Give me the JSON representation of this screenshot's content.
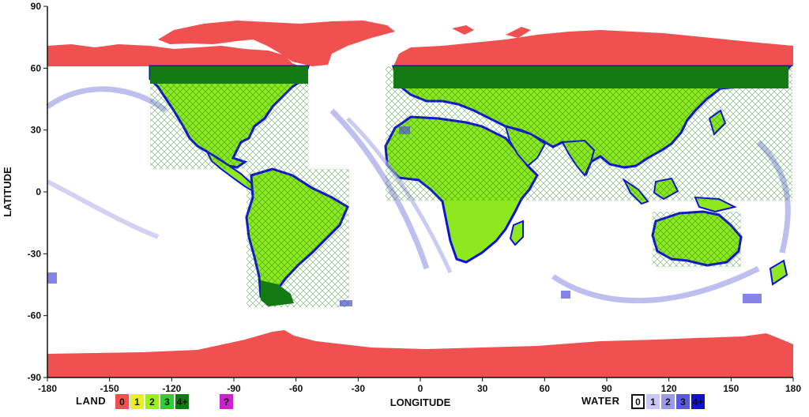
{
  "map": {
    "x_axis": {
      "label": "LONGITUDE",
      "ticks": [
        "-180",
        "-150",
        "-120",
        "-90",
        "-60",
        "-30",
        "0",
        "30",
        "60",
        "90",
        "120",
        "150",
        "180"
      ]
    },
    "y_axis": {
      "label": "LATITUDE",
      "ticks": [
        "90",
        "60",
        "30",
        "0",
        "-30",
        "-60",
        "-90"
      ]
    }
  },
  "legend": {
    "land": {
      "label": "LAND",
      "items": [
        {
          "text": "0",
          "color": "#f05050"
        },
        {
          "text": "1",
          "color": "#e8f020"
        },
        {
          "text": "2",
          "color": "#9ef018"
        },
        {
          "text": "3",
          "color": "#2ecf2e"
        },
        {
          "text": "4+",
          "color": "#127a12"
        }
      ],
      "unknown": {
        "text": "?",
        "color": "#cc22cc"
      }
    },
    "water": {
      "label": "WATER",
      "items": [
        {
          "text": "0",
          "color": "#ffffff"
        },
        {
          "text": "1",
          "color": "#c8c8f2"
        },
        {
          "text": "2",
          "color": "#9a9ae8"
        },
        {
          "text": "3",
          "color": "#5a5ae0"
        },
        {
          "text": "4+",
          "color": "#1010d8"
        }
      ]
    }
  },
  "colors": {
    "no_coverage_land": "#f05050",
    "coverage_land": "#8de81e",
    "coverage_land_dense": "#137a13",
    "coverage_water": "#1010d8",
    "swath_water": "#b4b4ec"
  }
}
